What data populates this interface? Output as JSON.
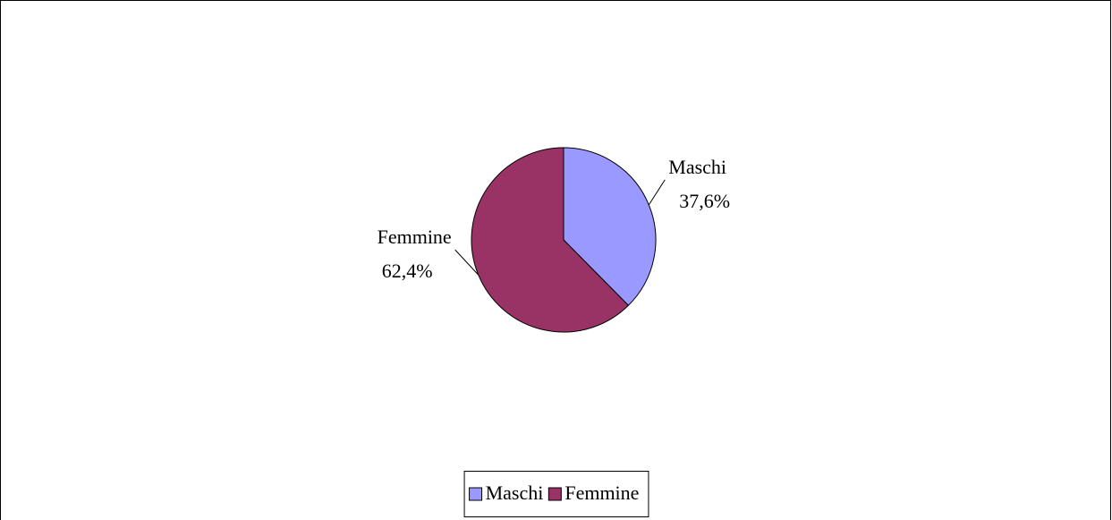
{
  "chart_data": {
    "type": "pie",
    "categories": [
      "Maschi",
      "Femmine"
    ],
    "values": [
      37.6,
      62.4
    ],
    "value_labels": [
      "37,6%",
      "62,4%"
    ],
    "colors": [
      "#9999ff",
      "#993366"
    ],
    "legend": "bottom"
  }
}
